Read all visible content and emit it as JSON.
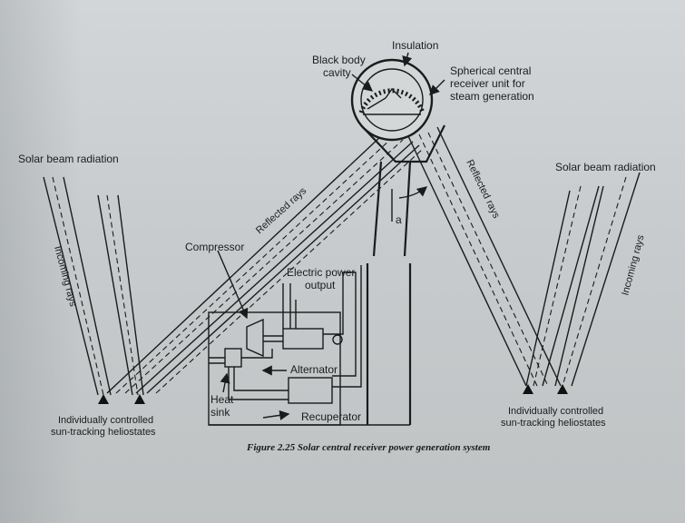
{
  "labels": {
    "solar_beam_left": "Solar beam radiation",
    "solar_beam_right": "Solar beam radiation",
    "incoming_rays_left": "Incoming rays",
    "incoming_rays_right": "Incoming rays",
    "black_body_line1": "Black body",
    "black_body_line2": "cavity",
    "insulation": "Insulation",
    "receiver_line1": "Spherical central",
    "receiver_line2": "receiver unit for",
    "receiver_line3": "steam generation",
    "reflected_left": "Reflected rays",
    "reflected_right": "Reflected rays",
    "angle": "a",
    "compressor": "Compressor",
    "electric_line1": "Electric power",
    "electric_line2": "output",
    "alternator": "Alternator",
    "heat_sink_line1": "Heat",
    "heat_sink_line2": "sink",
    "recuperator": "Recuperator",
    "heliostat_left_line1": "Individually controlled",
    "heliostat_left_line2": "sun-tracking heliostates",
    "heliostat_right_line1": "Individually controlled",
    "heliostat_right_line2": "sun-tracking heliostates"
  },
  "caption": "Figure 2.25 Solar central receiver power generation system"
}
